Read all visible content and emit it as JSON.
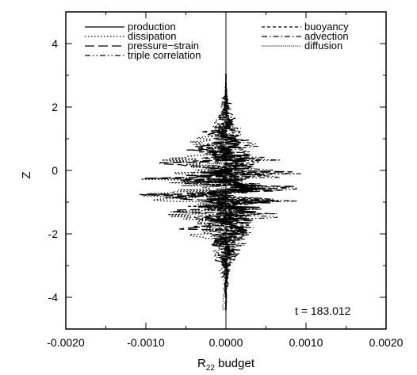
{
  "chart_data": {
    "type": "line",
    "xlabel_main": "R",
    "xlabel_sub": "22",
    "xlabel_rest": " budget",
    "ylabel": "Z",
    "xlim": [
      -0.002,
      0.002
    ],
    "ylim": [
      -5,
      5
    ],
    "x_ticks": [
      "-0.0020",
      "-0.0010",
      "0.0000",
      "0.0010",
      "0.0020"
    ],
    "x_tick_values": [
      -0.002,
      -0.001,
      0.0,
      0.001,
      0.002
    ],
    "y_ticks": [
      "-4",
      "-2",
      "0",
      "2",
      "4"
    ],
    "y_tick_values": [
      -4,
      -2,
      0,
      2,
      4
    ],
    "annotation": "t = 183.012",
    "legend": {
      "left": [
        "production",
        "dissipation",
        "pressure−strain",
        "triple correlation"
      ],
      "right": [
        "buoyancy",
        "advection",
        "diffusion"
      ]
    },
    "series": [
      {
        "name": "production",
        "style": "solid"
      },
      {
        "name": "dissipation",
        "style": "dotted"
      },
      {
        "name": "pressure−strain",
        "style": "longdash"
      },
      {
        "name": "triple correlation",
        "style": "dashdotdot"
      },
      {
        "name": "buoyancy",
        "style": "shortdash"
      },
      {
        "name": "advection",
        "style": "dashdot"
      },
      {
        "name": "diffusion",
        "style": "finedot"
      }
    ],
    "z_range": [
      -4.4,
      3.05
    ]
  }
}
